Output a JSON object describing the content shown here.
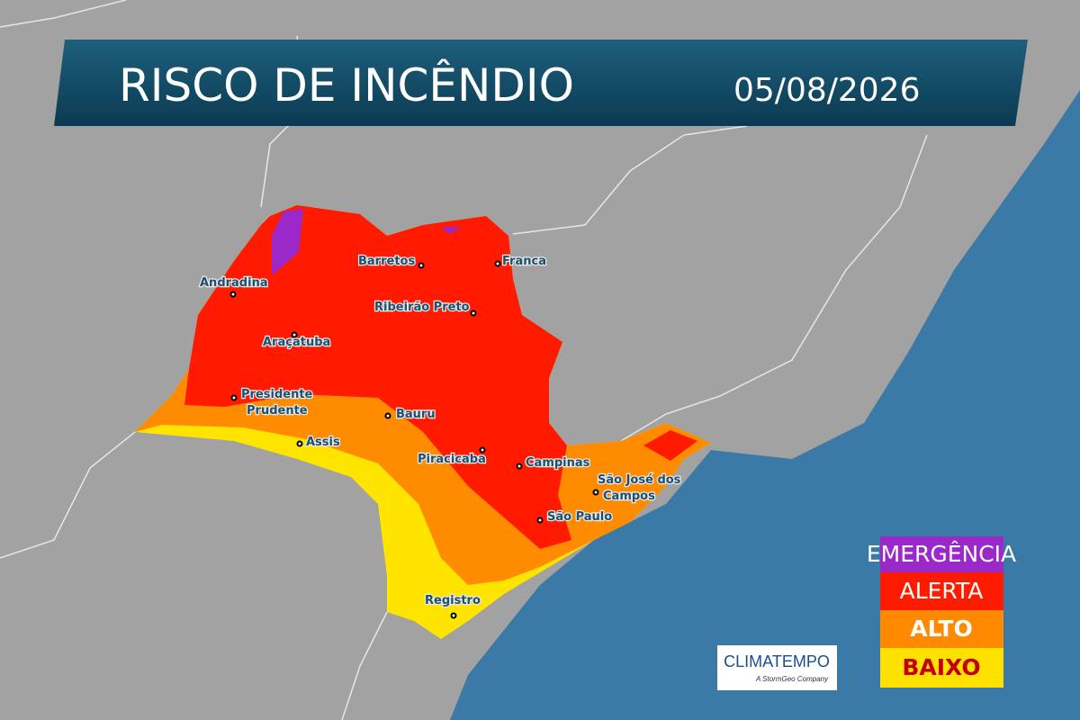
{
  "header": {
    "title": "RISCO DE INCÊNDIO",
    "date": "05/08/2026"
  },
  "cities": [
    {
      "lines": [
        "Andradina"
      ]
    },
    {
      "lines": [
        "Barretos"
      ]
    },
    {
      "lines": [
        "Franca"
      ]
    },
    {
      "lines": [
        "Ribeirão Preto"
      ]
    },
    {
      "lines": [
        "Araçatuba"
      ]
    },
    {
      "lines": [
        "Presidente",
        "Prudente"
      ]
    },
    {
      "lines": [
        "Bauru"
      ]
    },
    {
      "lines": [
        "Assis"
      ]
    },
    {
      "lines": [
        "Piracicaba"
      ]
    },
    {
      "lines": [
        "Campinas"
      ]
    },
    {
      "lines": [
        "São José dos",
        "Campos"
      ]
    },
    {
      "lines": [
        "São Paulo"
      ]
    },
    {
      "lines": [
        "Registro"
      ]
    }
  ],
  "legend": [
    {
      "label": "EMERGÊNCIA",
      "color": "#9b28c9"
    },
    {
      "label": "ALERTA",
      "color": "#ff1b00"
    },
    {
      "label": "ALTO",
      "color": "#ff8a00"
    },
    {
      "label": "BAIXO",
      "color": "#ffe100"
    }
  ],
  "logo": {
    "name": "CLIMATEMPO",
    "tagline": "A StormGeo Company"
  }
}
